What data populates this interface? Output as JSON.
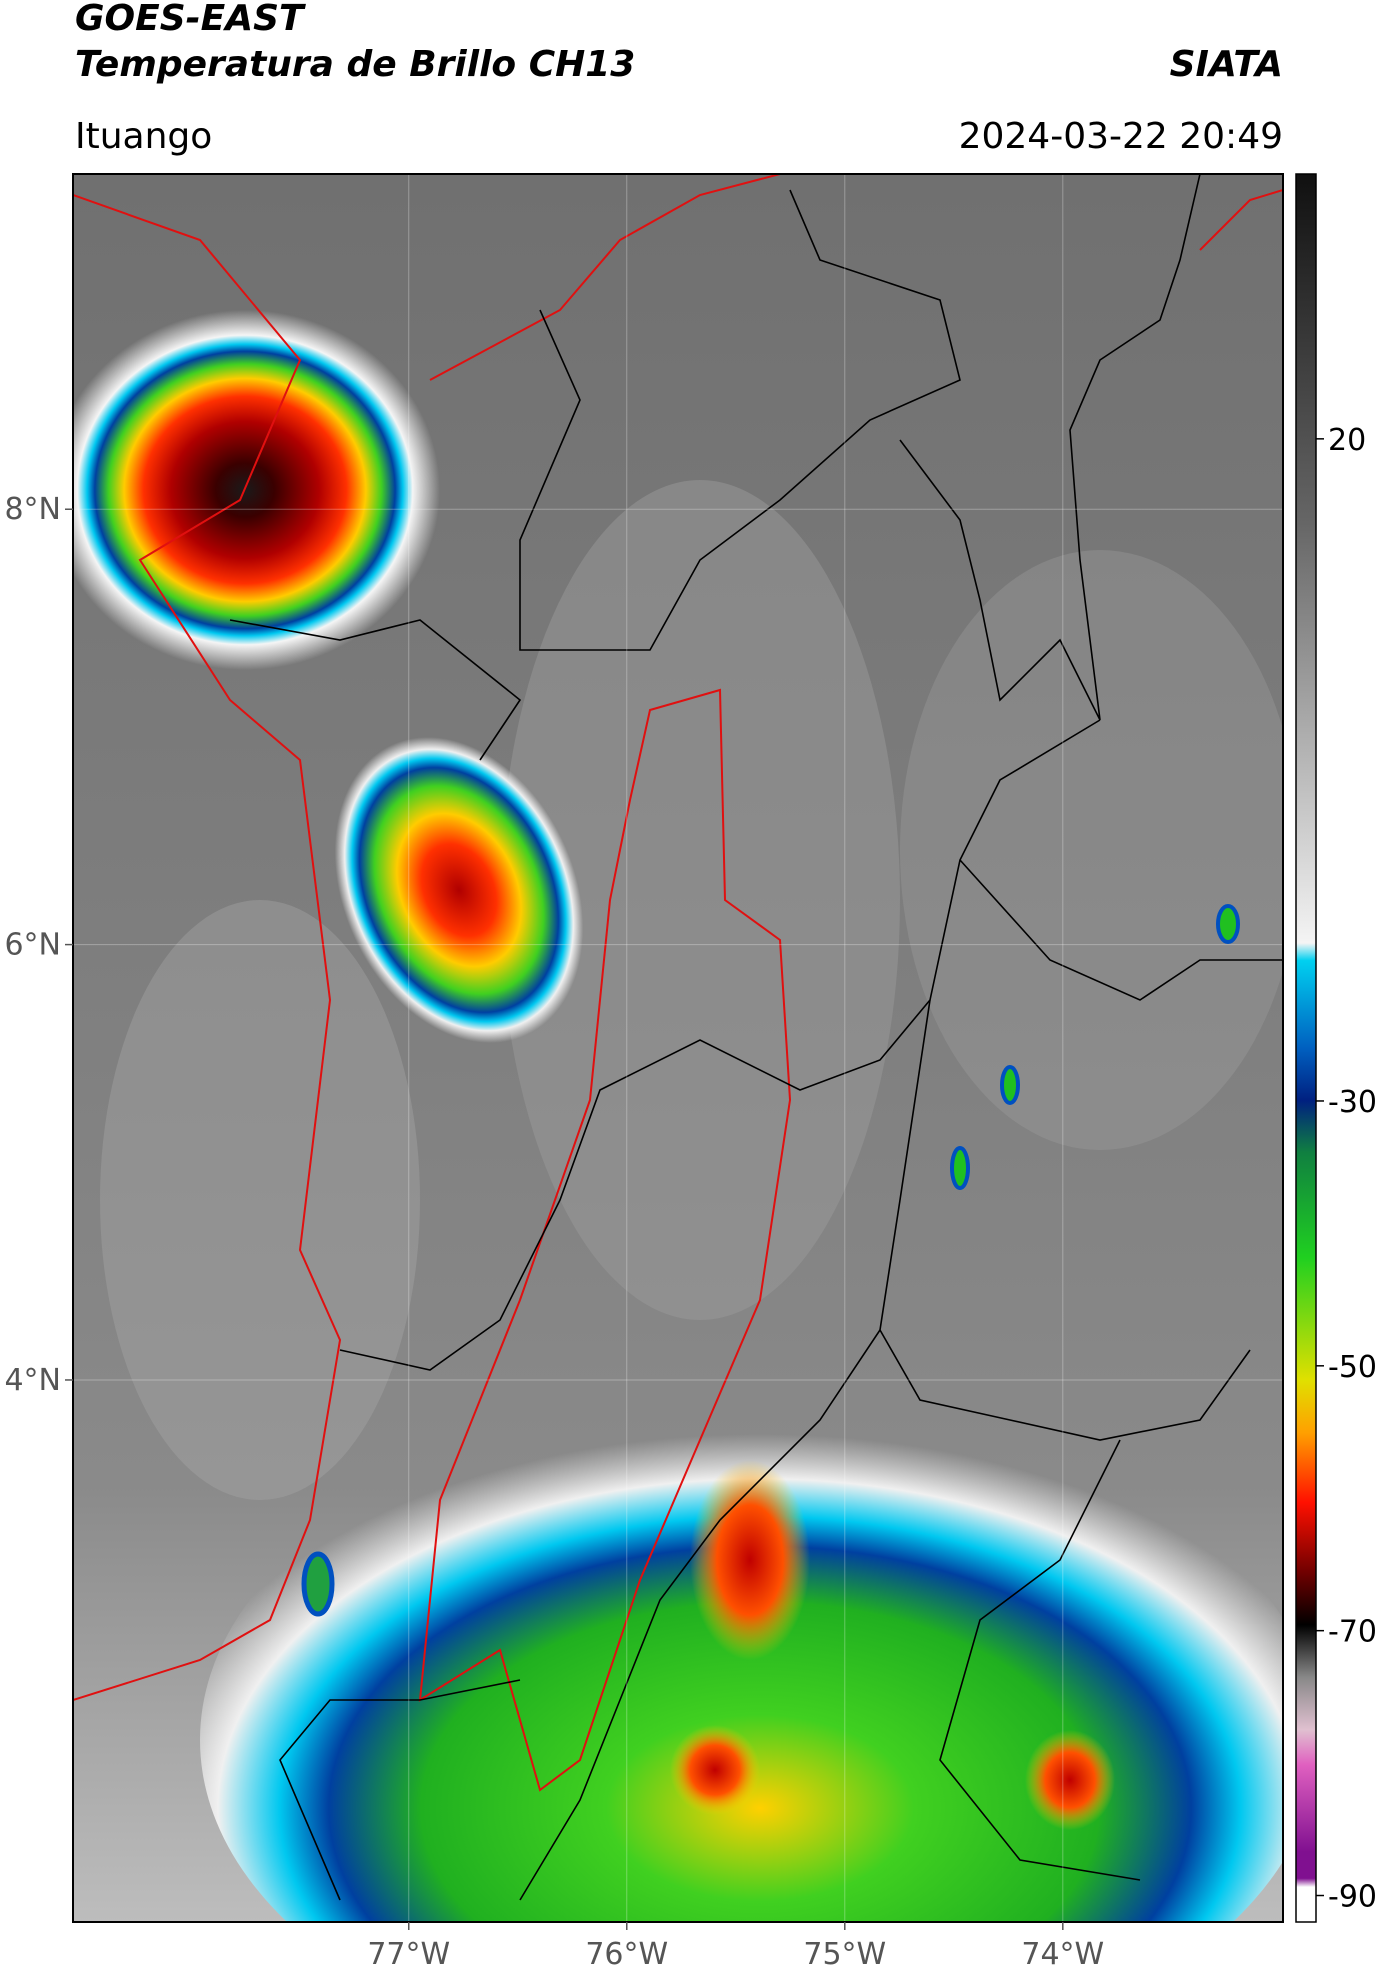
{
  "header": {
    "satellite": "GOES-EAST",
    "product": "Temperatura de Brillo CH13",
    "agency": "SIATA",
    "location": "Ituango",
    "timestamp": "2024-03-22 20:49"
  },
  "map": {
    "xlim": [
      -78.54,
      -72.99
    ],
    "ylim": [
      1.51,
      9.54
    ],
    "xticks": [
      {
        "value": -77,
        "label": "77°W"
      },
      {
        "value": -76,
        "label": "76°W"
      },
      {
        "value": -75,
        "label": "75°W"
      },
      {
        "value": -74,
        "label": "74°W"
      }
    ],
    "yticks": [
      {
        "value": 8,
        "label": "8°N"
      },
      {
        "value": 6,
        "label": "6°N"
      },
      {
        "value": 4,
        "label": "4°N"
      }
    ],
    "grid": true
  },
  "colorbar": {
    "lim": [
      -92,
      40
    ],
    "ticks": [
      20,
      -30,
      -50,
      -70,
      -90
    ]
  }
}
